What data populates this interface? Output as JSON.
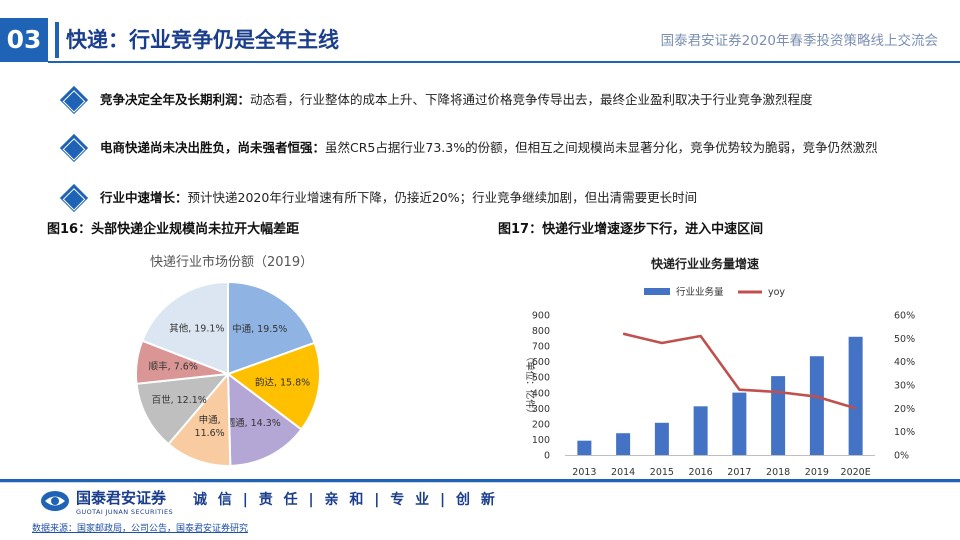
{
  "header": {
    "section_number": "03",
    "title": "快递：行业竞争仍是全年主线",
    "conference": "国泰君安证券2020年春季投资策略线上交流会"
  },
  "bullets": [
    {
      "bold": "竞争决定全年及长期利润：",
      "text": "动态看，行业整体的成本上升、下降将通过价格竞争传导出去，最终企业盈利取决于行业竞争激烈程度"
    },
    {
      "bold": "电商快递尚未决出胜负，尚未强者恒强：",
      "text": "虽然CR5占据行业73.3%的份额，但相互之间规模尚未显著分化，竞争优势较为脆弱，竞争仍然激烈"
    },
    {
      "bold": "行业中速增长：",
      "text": "预计快递2020年行业增速有所下降，仍接近20%；行业竞争继续加剧，但出清需要更长时间"
    }
  ],
  "figures": {
    "fig16_title": "图16：头部快递企业规模尚未拉开大幅差距",
    "fig17_title": "图17：快递行业增速逐步下行，进入中速区间"
  },
  "chart_data": [
    {
      "type": "pie",
      "title": "快递行业市场份额（2019）",
      "slices": [
        {
          "name": "中通",
          "value": 19.5,
          "label": "中通, 19.5%",
          "color": "#8fb3e3"
        },
        {
          "name": "韵达",
          "value": 15.8,
          "label": "韵达, 15.8%",
          "color": "#ffc000"
        },
        {
          "name": "圆通",
          "value": 14.3,
          "label": "圆通, 14.3%",
          "color": "#b4a7d6"
        },
        {
          "name": "申通",
          "value": 11.6,
          "label_line1": "申通,",
          "label_line2": "11.6%",
          "color": "#f8cba0"
        },
        {
          "name": "百世",
          "value": 12.1,
          "label": "百世, 12.1%",
          "color": "#bfbfbf"
        },
        {
          "name": "顺丰",
          "value": 7.6,
          "label": "顺丰, 7.6%",
          "color": "#d99694"
        },
        {
          "name": "其他",
          "value": 19.1,
          "label": "其他, 19.1%",
          "color": "#dce6f2"
        }
      ]
    },
    {
      "type": "bar+line",
      "title": "快递行业业务量增速",
      "categories": [
        "2013",
        "2014",
        "2015",
        "2016",
        "2017",
        "2018",
        "2019",
        "2020E"
      ],
      "series": [
        {
          "name": "行业业务量",
          "type": "bar",
          "axis": "left",
          "color": "#4472c4",
          "values": [
            92,
            140,
            207,
            313,
            401,
            507,
            635,
            760
          ]
        },
        {
          "name": "yoy",
          "type": "line",
          "axis": "right",
          "color": "#c0504d",
          "values": [
            null,
            0.52,
            0.48,
            0.51,
            0.28,
            0.27,
            0.25,
            0.2
          ]
        }
      ],
      "ylabel": "（单位：亿件）",
      "ylim_left": [
        0,
        900
      ],
      "yticks_left": [
        "0",
        "100",
        "200",
        "300",
        "400",
        "500",
        "600",
        "700",
        "800",
        "900"
      ],
      "ylim_right": [
        0,
        0.6
      ],
      "yticks_right": [
        "0%",
        "10%",
        "20%",
        "30%",
        "40%",
        "50%",
        "60%"
      ],
      "legend_position": "top"
    }
  ],
  "footer": {
    "logo_cn": "国泰君安证券",
    "logo_en": "GUOTAI JUNAN SECURITIES",
    "slogan": "诚 信 | 责 任 | 亲 和 | 专 业 | 创 新",
    "source": "数据来源：国家邮政局，公司公告，国泰君安证券研究"
  },
  "colors": {
    "brand": "#1f63b6",
    "title": "#1a3e8c"
  }
}
